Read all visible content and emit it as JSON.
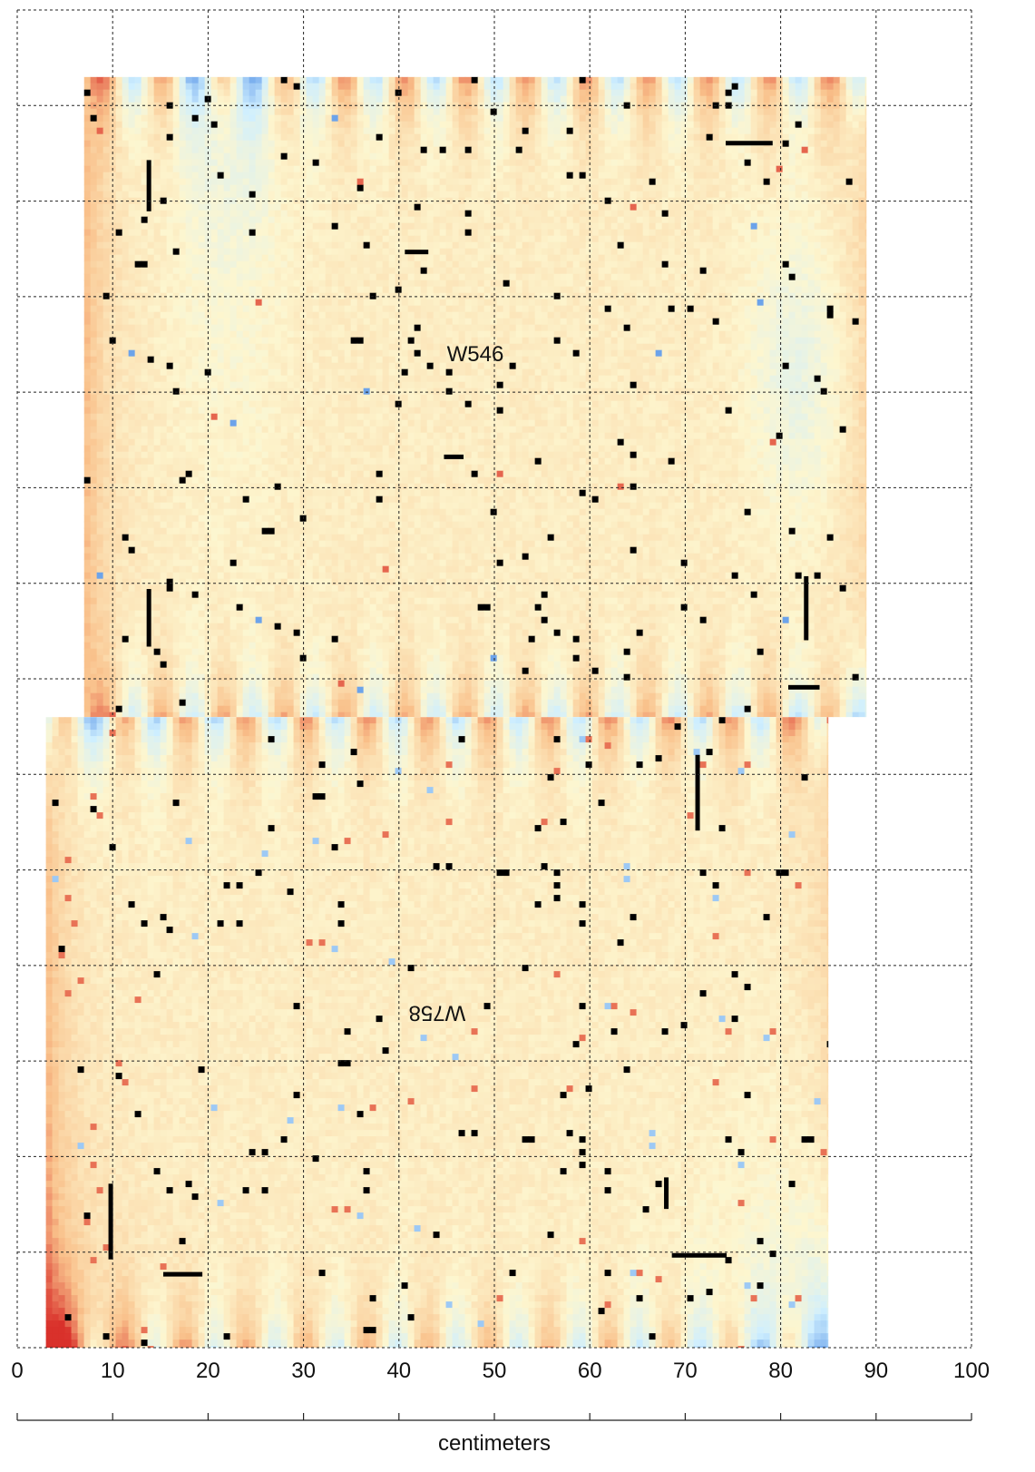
{
  "chart_data": {
    "type": "heatmap",
    "xlabel": "centimeters",
    "xlim": [
      0,
      100
    ],
    "x_ticks": [
      0,
      10,
      20,
      30,
      40,
      50,
      60,
      70,
      80,
      90,
      100
    ],
    "x_tick_labels": [
      "0",
      "10",
      "20",
      "30",
      "40",
      "50",
      "60",
      "70",
      "80",
      "90",
      "100"
    ],
    "grid": "dashed",
    "panels": [
      {
        "label": "W546",
        "orientation": "normal",
        "x_extent_cm": [
          7,
          89
        ],
        "y_extent_cm": [
          66,
          133
        ],
        "notes": "residual map, mostly pale yellow with blue/red edge bands and scattered dead (black) pixels"
      },
      {
        "label": "W758",
        "orientation": "rotated-180",
        "x_extent_cm": [
          3,
          85
        ],
        "y_extent_cm": [
          0,
          66
        ],
        "notes": "residual map, stronger red at lower-left corner, blue at lower-right"
      }
    ],
    "colorscale": {
      "low": "#3a7de0",
      "mid_low": "#cfefff",
      "mid": "#fdf6cf",
      "mid_high": "#f9c08a",
      "high": "#d9312b",
      "dead": "#000000"
    }
  }
}
